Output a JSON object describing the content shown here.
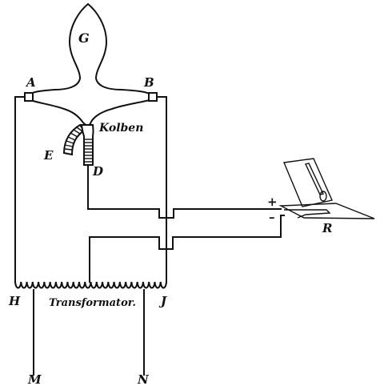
{
  "labels": {
    "A": "A",
    "B": "B",
    "G": "G",
    "E": "E",
    "D": "D",
    "kolben": "Kolben",
    "H": "H",
    "J": "J",
    "transformator": "Transformator.",
    "M": "M",
    "N": "N",
    "R": "R",
    "plus": "+",
    "minus": "–"
  },
  "colors": {
    "ink": "#111111",
    "paper": "#ffffff"
  }
}
